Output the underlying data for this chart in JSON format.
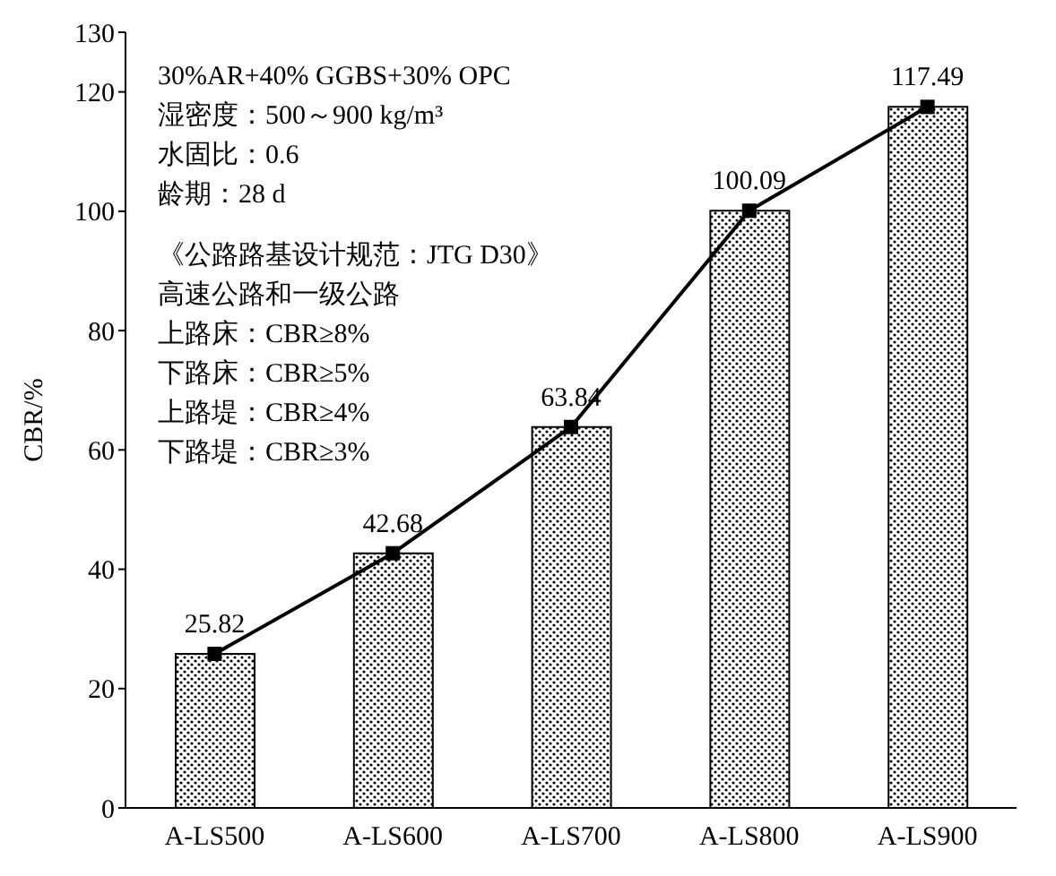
{
  "chart_data": {
    "type": "bar",
    "ylabel": "CBR/%",
    "categories": [
      "A-LS500",
      "A-LS600",
      "A-LS700",
      "A-LS800",
      "A-LS900"
    ],
    "series": [
      {
        "color": "#000000",
        "values": [
          25.82,
          42.68,
          63.84,
          100.09,
          117.49
        ]
      },
      {
        "type": "line",
        "color": "#000000",
        "values": [
          25.82,
          42.68,
          63.84,
          100.09,
          117.49
        ],
        "value_labels": [
          "25.82",
          "42.68",
          "63.84",
          "100.09",
          "117.49"
        ]
      }
    ],
    "ylim": [
      0,
      130
    ],
    "yticks": [
      0,
      20,
      40,
      60,
      80,
      100,
      120,
      130
    ],
    "marker": "square",
    "line_style": "solid",
    "annotations": [
      "30%AR+40% GGBS+30% OPC",
      "湿密度：500～900 kg/m³",
      "水固比：0.6",
      "龄期：28 d",
      "《公路路基设计规范：JTG D30》",
      "高速公路和一级公路",
      "上路床：CBR≥8%",
      "下路床：CBR≥5%",
      "上路堤：CBR≥4%",
      "下路堤：CBR≥3%"
    ]
  }
}
